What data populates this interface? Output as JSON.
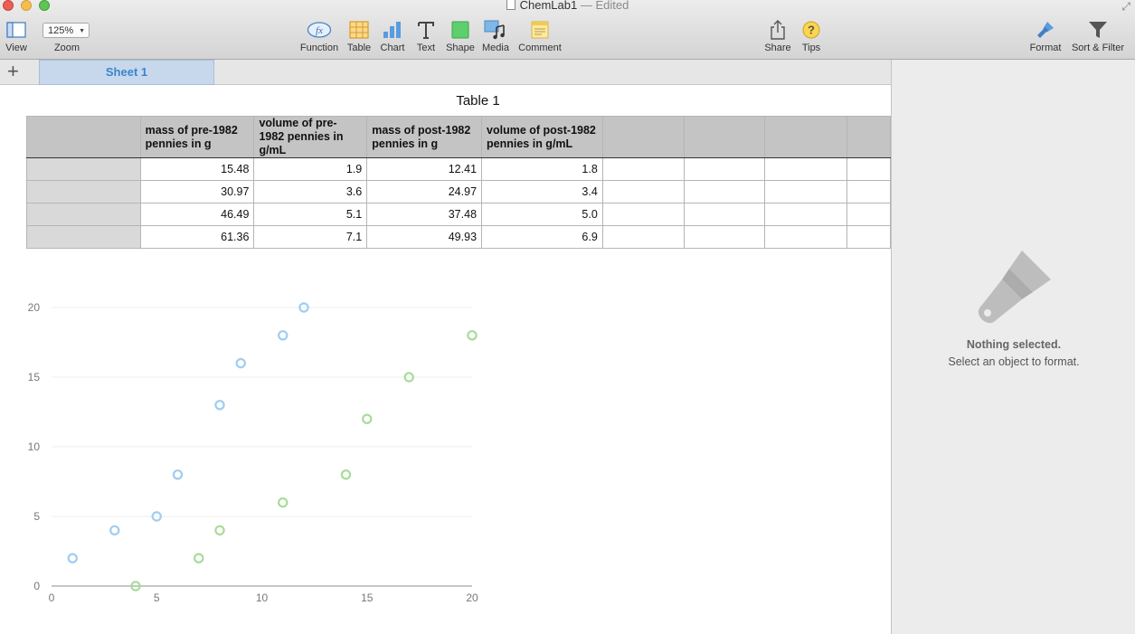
{
  "window": {
    "title": "ChemLab1",
    "title_separator": "—",
    "title_status": "Edited"
  },
  "toolbar": {
    "view": "View",
    "zoom_label": "Zoom",
    "zoom_value": "125%",
    "function": "Function",
    "table": "Table",
    "chart": "Chart",
    "text": "Text",
    "shape": "Shape",
    "media": "Media",
    "comment": "Comment",
    "share": "Share",
    "tips": "Tips",
    "format": "Format",
    "sort_filter": "Sort & Filter",
    "function_glyph": "fx"
  },
  "sheets": {
    "add_symbol": "+",
    "tabs": [
      "Sheet 1"
    ]
  },
  "table": {
    "title": "Table 1",
    "headers": [
      "mass of pre-1982 pennies in g",
      "volume of pre-1982 pennies in g/mL",
      "mass of post-1982 pennies in g",
      "volume of post-1982 pennies in g/mL"
    ],
    "rows": [
      [
        "15.48",
        "1.9",
        "12.41",
        "1.8"
      ],
      [
        "30.97",
        "3.6",
        "24.97",
        "3.4"
      ],
      [
        "46.49",
        "5.1",
        "37.48",
        "5.0"
      ],
      [
        "61.36",
        "7.1",
        "49.93",
        "6.9"
      ]
    ]
  },
  "chart_data": {
    "type": "scatter",
    "title": "",
    "xlabel": "",
    "ylabel": "",
    "xlim": [
      0,
      20
    ],
    "ylim": [
      0,
      20
    ],
    "x_ticks": [
      0,
      5,
      10,
      15,
      20
    ],
    "y_ticks": [
      0,
      5,
      10,
      15,
      20
    ],
    "grid": "horizontal",
    "legend": "none",
    "series": [
      {
        "color": "#9fcdf2",
        "points": [
          [
            1,
            2
          ],
          [
            3,
            4
          ],
          [
            5,
            5
          ],
          [
            6,
            8
          ],
          [
            8,
            13
          ],
          [
            9,
            16
          ],
          [
            11,
            18
          ],
          [
            12,
            20
          ]
        ]
      },
      {
        "color": "#a8dc9a",
        "points": [
          [
            4,
            0
          ],
          [
            7,
            2
          ],
          [
            8,
            4
          ],
          [
            11,
            6
          ],
          [
            14,
            8
          ],
          [
            15,
            12
          ],
          [
            17,
            15
          ],
          [
            20,
            18
          ]
        ]
      }
    ]
  },
  "inspector": {
    "title": "Nothing selected.",
    "subtitle": "Select an object to format."
  },
  "colors": {
    "accent": "#3d84cc",
    "tab_bg": "#c7d8ec",
    "series_blue": "#9fcdf2",
    "series_green": "#a8dc9a"
  }
}
